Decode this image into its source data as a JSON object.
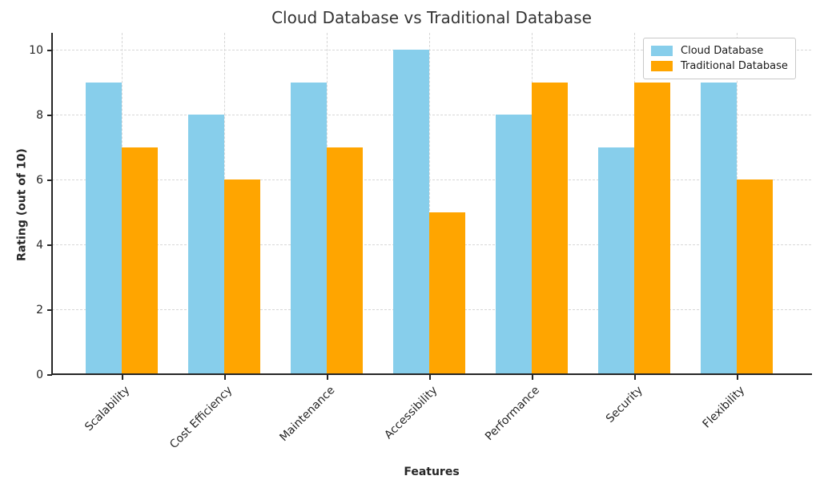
{
  "chart_data": {
    "type": "bar",
    "title": "Cloud Database vs Traditional Database",
    "xlabel": "Features",
    "ylabel": "Rating (out of 10)",
    "categories": [
      "Scalability",
      "Cost Efficiency",
      "Maintenance",
      "Accessibility",
      "Performance",
      "Security",
      "Flexibility"
    ],
    "series": [
      {
        "name": "Cloud Database",
        "color": "#87CEEB",
        "values": [
          9,
          8,
          9,
          10,
          8,
          7,
          9
        ]
      },
      {
        "name": "Traditional Database",
        "color": "#FFA500",
        "values": [
          7,
          6,
          7,
          5,
          9,
          9,
          6
        ]
      }
    ],
    "yticks": [
      0,
      2,
      4,
      6,
      8,
      10
    ],
    "ylim": [
      0,
      10.52
    ],
    "grid": true,
    "grid_style": "dashed",
    "legend_position": "upper right",
    "background_color": "#ffffff",
    "text_color": "#262626"
  }
}
